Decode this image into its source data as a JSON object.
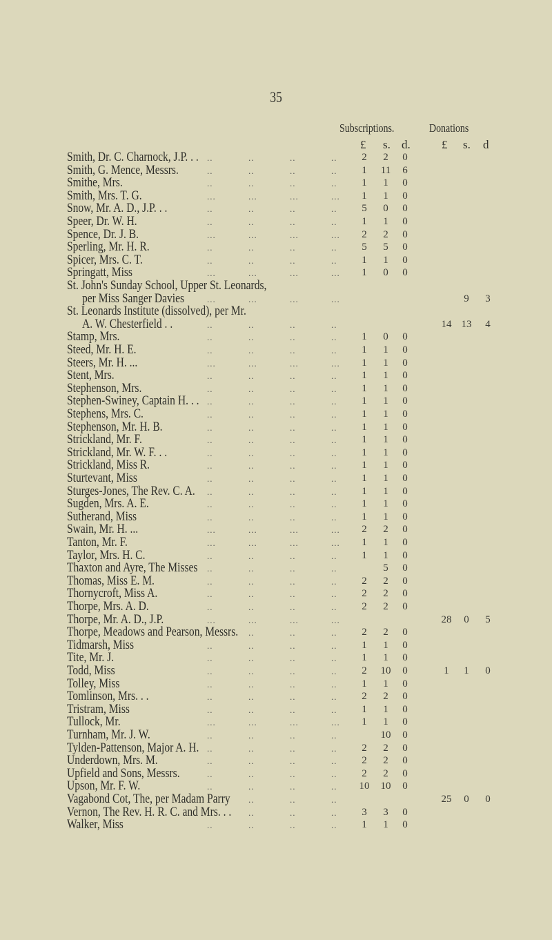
{
  "page_number": "35",
  "headers": {
    "subscriptions": "Subscriptions.",
    "donations": "Donations",
    "sub_units": [
      "£",
      "s.",
      "d."
    ],
    "don_units": [
      "£",
      "s.",
      "d"
    ]
  },
  "rows": [
    {
      "name": "Smith, Dr. C. Charnock, J.P. . .",
      "leader": "..",
      "sub": [
        "2",
        "2",
        "0"
      ]
    },
    {
      "name": "Smith, G. Mence, Messrs.",
      "leader": "..",
      "sub": [
        "1",
        "11",
        "6"
      ]
    },
    {
      "name": "Smithe, Mrs.",
      "leader": "..",
      "sub": [
        "1",
        "1",
        "0"
      ]
    },
    {
      "name": "Smith, Mrs. T. G.",
      "leader": "...",
      "sub": [
        "1",
        "1",
        "0"
      ]
    },
    {
      "name": "Snow, Mr. A. D., J.P. . .",
      "leader": "..",
      "sub": [
        "5",
        "0",
        "0"
      ]
    },
    {
      "name": "Speer, Dr. W. H.",
      "leader": "..",
      "sub": [
        "1",
        "1",
        "0"
      ]
    },
    {
      "name": "Spence, Dr. J. B.",
      "leader": "...",
      "sub": [
        "2",
        "2",
        "0"
      ]
    },
    {
      "name": "Sperling, Mr. H. R.",
      "leader": "..",
      "sub": [
        "5",
        "5",
        "0"
      ]
    },
    {
      "name": "Spicer, Mrs. C. T.",
      "leader": "..",
      "sub": [
        "1",
        "1",
        "0"
      ]
    },
    {
      "name": "Springatt, Miss",
      "leader": "...",
      "sub": [
        "1",
        "0",
        "0"
      ]
    },
    {
      "name": "St. John's Sunday School, Upper St. Leonards,",
      "leader": ""
    },
    {
      "name": "per Miss Sanger Davies",
      "indent": true,
      "leader": "...",
      "don": [
        "",
        "9",
        "3"
      ]
    },
    {
      "name": "St. Leonards Institute (dissolved), per Mr.",
      "leader": ""
    },
    {
      "name": "A. W. Chesterfield . .",
      "indent": true,
      "leader": "..",
      "don": [
        "14",
        "13",
        "4"
      ]
    },
    {
      "name": "Stamp, Mrs.",
      "leader": "..",
      "sub": [
        "1",
        "0",
        "0"
      ]
    },
    {
      "name": "Steed, Mr. H. E.",
      "leader": "..",
      "sub": [
        "1",
        "1",
        "0"
      ]
    },
    {
      "name": "Steers, Mr. H. ...",
      "leader": "...",
      "sub": [
        "1",
        "1",
        "0"
      ]
    },
    {
      "name": "Stent, Mrs.",
      "leader": "..",
      "sub": [
        "1",
        "1",
        "0"
      ]
    },
    {
      "name": "Stephenson, Mrs.",
      "leader": "..",
      "sub": [
        "1",
        "1",
        "0"
      ]
    },
    {
      "name": "Stephen-Swiney, Captain H. . .",
      "leader": "..",
      "sub": [
        "1",
        "1",
        "0"
      ]
    },
    {
      "name": "Stephens, Mrs. C.",
      "leader": "..",
      "sub": [
        "1",
        "1",
        "0"
      ]
    },
    {
      "name": "Stephenson, Mr. H. B.",
      "leader": "..",
      "sub": [
        "1",
        "1",
        "0"
      ]
    },
    {
      "name": "Strickland, Mr. F.",
      "leader": "..",
      "sub": [
        "1",
        "1",
        "0"
      ]
    },
    {
      "name": "Strickland, Mr. W. F. . .",
      "leader": "..",
      "sub": [
        "1",
        "1",
        "0"
      ]
    },
    {
      "name": "Strickland, Miss R.",
      "leader": "..",
      "sub": [
        "1",
        "1",
        "0"
      ]
    },
    {
      "name": "Sturtevant, Miss",
      "leader": "..",
      "sub": [
        "1",
        "1",
        "0"
      ]
    },
    {
      "name": "Sturges-Jones, The Rev. C. A.",
      "leader": "..",
      "sub": [
        "1",
        "1",
        "0"
      ]
    },
    {
      "name": "Sugden, Mrs. A. E.",
      "leader": "..",
      "sub": [
        "1",
        "1",
        "0"
      ]
    },
    {
      "name": "Sutherand, Miss",
      "leader": "..",
      "sub": [
        "1",
        "1",
        "0"
      ]
    },
    {
      "name": "Swain, Mr. H. ...",
      "leader": "...",
      "sub": [
        "2",
        "2",
        "0"
      ]
    },
    {
      "name": "Tanton, Mr. F.",
      "leader": "...",
      "sub": [
        "1",
        "1",
        "0"
      ]
    },
    {
      "name": "Taylor, Mrs. H. C.",
      "leader": "..",
      "sub": [
        "1",
        "1",
        "0"
      ]
    },
    {
      "name": "Thaxton and Ayre, The Misses",
      "leader": "..",
      "sub": [
        "",
        "5",
        "0"
      ]
    },
    {
      "name": "Thomas, Miss E. M.",
      "leader": "..",
      "sub": [
        "2",
        "2",
        "0"
      ]
    },
    {
      "name": "Thornycroft, Miss A.",
      "leader": "..",
      "sub": [
        "2",
        "2",
        "0"
      ]
    },
    {
      "name": "Thorpe, Mrs. A. D.",
      "leader": "..",
      "sub": [
        "2",
        "2",
        "0"
      ]
    },
    {
      "name": "Thorpe, Mr. A. D., J.P.",
      "leader": "...",
      "don": [
        "28",
        "0",
        "5"
      ]
    },
    {
      "name": "Thorpe, Meadows and Pearson, Messrs.",
      "leader": "..",
      "sub": [
        "2",
        "2",
        "0"
      ]
    },
    {
      "name": "Tidmarsh, Miss",
      "leader": "..",
      "sub": [
        "1",
        "1",
        "0"
      ]
    },
    {
      "name": "Tite, Mr. J.",
      "leader": "..",
      "sub": [
        "1",
        "1",
        "0"
      ]
    },
    {
      "name": "Todd, Miss",
      "leader": "..",
      "sub": [
        "2",
        "10",
        "0"
      ],
      "don": [
        "1",
        "1",
        "0"
      ]
    },
    {
      "name": "Tolley, Miss",
      "leader": "..",
      "sub": [
        "1",
        "1",
        "0"
      ]
    },
    {
      "name": "Tomlinson, Mrs. . .",
      "leader": "..",
      "sub": [
        "2",
        "2",
        "0"
      ]
    },
    {
      "name": "Tristram, Miss",
      "leader": "..",
      "sub": [
        "1",
        "1",
        "0"
      ]
    },
    {
      "name": "Tullock, Mr.",
      "leader": "...",
      "sub": [
        "1",
        "1",
        "0"
      ]
    },
    {
      "name": "Turnham, Mr. J. W.",
      "leader": "..",
      "sub": [
        "",
        "10",
        "0"
      ]
    },
    {
      "name": "Tylden-Pattenson, Major A. H.",
      "leader": "..",
      "sub": [
        "2",
        "2",
        "0"
      ]
    },
    {
      "name": "Underdown, Mrs. M.",
      "leader": "..",
      "sub": [
        "2",
        "2",
        "0"
      ]
    },
    {
      "name": "Upfield and Sons, Messrs.",
      "leader": "..",
      "sub": [
        "2",
        "2",
        "0"
      ]
    },
    {
      "name": "Upson, Mr. F. W.",
      "leader": "..",
      "sub": [
        "10",
        "10",
        "0"
      ]
    },
    {
      "name": "Vagabond Cot, The, per Madam Parry",
      "leader": "..",
      "don": [
        "25",
        "0",
        "0"
      ]
    },
    {
      "name": "Vernon, The Rev. H. R. C. and Mrs. . .",
      "leader": "..",
      "sub": [
        "3",
        "3",
        "0"
      ]
    },
    {
      "name": "Walker, Miss",
      "leader": "..",
      "sub": [
        "1",
        "1",
        "0"
      ]
    }
  ]
}
